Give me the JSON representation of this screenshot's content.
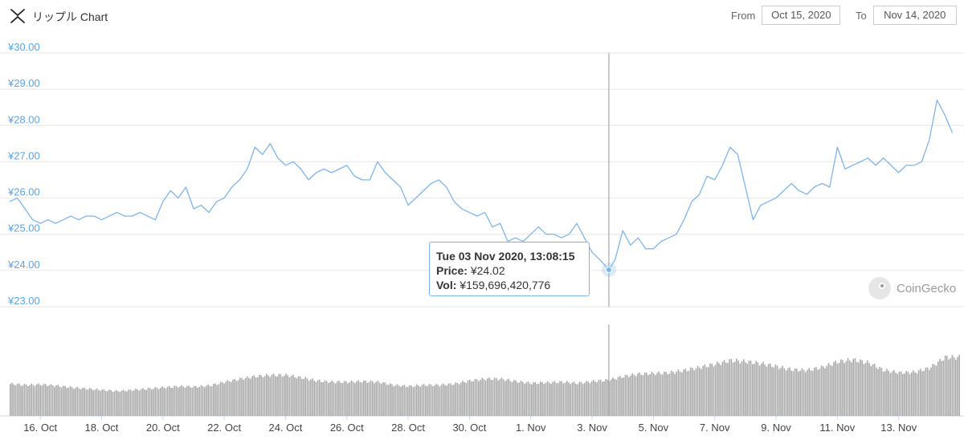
{
  "header": {
    "title": "リップル Chart",
    "from_label": "From",
    "from_value": "Oct 15, 2020",
    "to_label": "To",
    "to_value": "Nov 14, 2020"
  },
  "tooltip": {
    "date": "Tue 03 Nov 2020, 13:08:15",
    "price_label": "Price:",
    "price_value": "¥24.02",
    "vol_label": "Vol:",
    "vol_value": "¥159,696,420,776"
  },
  "watermark": {
    "text": "CoinGecko"
  },
  "colors": {
    "line": "#7cb5ec",
    "volume": "#a8a8a8",
    "grid": "#e6e6e6",
    "axis_label": "#5ba4e5"
  },
  "chart_data": {
    "type": "line",
    "x_start": "2020-10-15",
    "x_end": "2020-11-14",
    "ylim": [
      23,
      30
    ],
    "y_ticks": [
      "¥30.00",
      "¥29.00",
      "¥28.00",
      "¥27.00",
      "¥26.00",
      "¥25.00",
      "¥24.00",
      "¥23.00"
    ],
    "x_ticks": [
      {
        "date": "2020-10-16",
        "label": "16. Oct"
      },
      {
        "date": "2020-10-18",
        "label": "18. Oct"
      },
      {
        "date": "2020-10-20",
        "label": "20. Oct"
      },
      {
        "date": "2020-10-22",
        "label": "22. Oct"
      },
      {
        "date": "2020-10-24",
        "label": "24. Oct"
      },
      {
        "date": "2020-10-26",
        "label": "26. Oct"
      },
      {
        "date": "2020-10-28",
        "label": "28. Oct"
      },
      {
        "date": "2020-10-30",
        "label": "30. Oct"
      },
      {
        "date": "2020-11-01",
        "label": "1. Nov"
      },
      {
        "date": "2020-11-03",
        "label": "3. Nov"
      },
      {
        "date": "2020-11-05",
        "label": "5. Nov"
      },
      {
        "date": "2020-11-07",
        "label": "7. Nov"
      },
      {
        "date": "2020-11-09",
        "label": "9. Nov"
      },
      {
        "date": "2020-11-11",
        "label": "11. Nov"
      },
      {
        "date": "2020-11-13",
        "label": "13. Nov"
      }
    ],
    "grid": true,
    "legend": "none",
    "highlight": {
      "x": "2020-11-03T13:08:15",
      "y": 24.02
    },
    "series": [
      {
        "values": [
          [
            "2020-10-15T00:00",
            25.9
          ],
          [
            "2020-10-15T06:00",
            26.0
          ],
          [
            "2020-10-15T12:00",
            25.7
          ],
          [
            "2020-10-15T18:00",
            25.4
          ],
          [
            "2020-10-16T00:00",
            25.3
          ],
          [
            "2020-10-16T06:00",
            25.4
          ],
          [
            "2020-10-16T12:00",
            25.3
          ],
          [
            "2020-10-16T18:00",
            25.4
          ],
          [
            "2020-10-17T00:00",
            25.5
          ],
          [
            "2020-10-17T06:00",
            25.4
          ],
          [
            "2020-10-17T12:00",
            25.5
          ],
          [
            "2020-10-17T18:00",
            25.5
          ],
          [
            "2020-10-18T00:00",
            25.4
          ],
          [
            "2020-10-18T06:00",
            25.5
          ],
          [
            "2020-10-18T12:00",
            25.6
          ],
          [
            "2020-10-18T18:00",
            25.5
          ],
          [
            "2020-10-19T00:00",
            25.5
          ],
          [
            "2020-10-19T06:00",
            25.6
          ],
          [
            "2020-10-19T12:00",
            25.5
          ],
          [
            "2020-10-19T18:00",
            25.4
          ],
          [
            "2020-10-20T00:00",
            25.9
          ],
          [
            "2020-10-20T06:00",
            26.2
          ],
          [
            "2020-10-20T12:00",
            26.0
          ],
          [
            "2020-10-20T18:00",
            26.3
          ],
          [
            "2020-10-21T00:00",
            25.7
          ],
          [
            "2020-10-21T06:00",
            25.8
          ],
          [
            "2020-10-21T12:00",
            25.6
          ],
          [
            "2020-10-21T18:00",
            25.9
          ],
          [
            "2020-10-22T00:00",
            26.0
          ],
          [
            "2020-10-22T06:00",
            26.3
          ],
          [
            "2020-10-22T12:00",
            26.5
          ],
          [
            "2020-10-22T18:00",
            26.8
          ],
          [
            "2020-10-23T00:00",
            27.4
          ],
          [
            "2020-10-23T06:00",
            27.2
          ],
          [
            "2020-10-23T12:00",
            27.5
          ],
          [
            "2020-10-23T18:00",
            27.1
          ],
          [
            "2020-10-24T00:00",
            26.9
          ],
          [
            "2020-10-24T06:00",
            27.0
          ],
          [
            "2020-10-24T12:00",
            26.8
          ],
          [
            "2020-10-24T18:00",
            26.5
          ],
          [
            "2020-10-25T00:00",
            26.7
          ],
          [
            "2020-10-25T06:00",
            26.8
          ],
          [
            "2020-10-25T12:00",
            26.7
          ],
          [
            "2020-10-25T18:00",
            26.8
          ],
          [
            "2020-10-26T00:00",
            26.9
          ],
          [
            "2020-10-26T06:00",
            26.6
          ],
          [
            "2020-10-26T12:00",
            26.5
          ],
          [
            "2020-10-26T18:00",
            26.5
          ],
          [
            "2020-10-27T00:00",
            27.0
          ],
          [
            "2020-10-27T06:00",
            26.7
          ],
          [
            "2020-10-27T12:00",
            26.5
          ],
          [
            "2020-10-27T18:00",
            26.3
          ],
          [
            "2020-10-28T00:00",
            25.8
          ],
          [
            "2020-10-28T06:00",
            26.0
          ],
          [
            "2020-10-28T12:00",
            26.2
          ],
          [
            "2020-10-28T18:00",
            26.4
          ],
          [
            "2020-10-29T00:00",
            26.5
          ],
          [
            "2020-10-29T06:00",
            26.3
          ],
          [
            "2020-10-29T12:00",
            25.9
          ],
          [
            "2020-10-29T18:00",
            25.7
          ],
          [
            "2020-10-30T00:00",
            25.6
          ],
          [
            "2020-10-30T06:00",
            25.5
          ],
          [
            "2020-10-30T12:00",
            25.6
          ],
          [
            "2020-10-30T18:00",
            25.2
          ],
          [
            "2020-10-31T00:00",
            25.3
          ],
          [
            "2020-10-31T06:00",
            24.8
          ],
          [
            "2020-10-31T12:00",
            24.9
          ],
          [
            "2020-10-31T18:00",
            24.8
          ],
          [
            "2020-11-01T00:00",
            25.0
          ],
          [
            "2020-11-01T06:00",
            25.2
          ],
          [
            "2020-11-01T12:00",
            25.0
          ],
          [
            "2020-11-01T18:00",
            25.0
          ],
          [
            "2020-11-02T00:00",
            24.9
          ],
          [
            "2020-11-02T06:00",
            25.0
          ],
          [
            "2020-11-02T12:00",
            25.3
          ],
          [
            "2020-11-02T18:00",
            24.9
          ],
          [
            "2020-11-03T00:00",
            24.5
          ],
          [
            "2020-11-03T06:00",
            24.3
          ],
          [
            "2020-11-03T13:08",
            24.02
          ],
          [
            "2020-11-03T18:00",
            24.3
          ],
          [
            "2020-11-04T00:00",
            25.1
          ],
          [
            "2020-11-04T06:00",
            24.7
          ],
          [
            "2020-11-04T12:00",
            24.9
          ],
          [
            "2020-11-04T18:00",
            24.6
          ],
          [
            "2020-11-05T00:00",
            24.6
          ],
          [
            "2020-11-05T06:00",
            24.8
          ],
          [
            "2020-11-05T12:00",
            24.9
          ],
          [
            "2020-11-05T18:00",
            25.0
          ],
          [
            "2020-11-06T00:00",
            25.4
          ],
          [
            "2020-11-06T06:00",
            25.9
          ],
          [
            "2020-11-06T12:00",
            26.1
          ],
          [
            "2020-11-06T18:00",
            26.6
          ],
          [
            "2020-11-07T00:00",
            26.5
          ],
          [
            "2020-11-07T06:00",
            26.9
          ],
          [
            "2020-11-07T12:00",
            27.4
          ],
          [
            "2020-11-07T18:00",
            27.2
          ],
          [
            "2020-11-08T00:00",
            26.3
          ],
          [
            "2020-11-08T06:00",
            25.4
          ],
          [
            "2020-11-08T12:00",
            25.8
          ],
          [
            "2020-11-08T18:00",
            25.9
          ],
          [
            "2020-11-09T00:00",
            26.0
          ],
          [
            "2020-11-09T06:00",
            26.2
          ],
          [
            "2020-11-09T12:00",
            26.4
          ],
          [
            "2020-11-09T18:00",
            26.2
          ],
          [
            "2020-11-10T00:00",
            26.1
          ],
          [
            "2020-11-10T06:00",
            26.3
          ],
          [
            "2020-11-10T12:00",
            26.4
          ],
          [
            "2020-11-10T18:00",
            26.3
          ],
          [
            "2020-11-11T00:00",
            27.4
          ],
          [
            "2020-11-11T06:00",
            26.8
          ],
          [
            "2020-11-11T12:00",
            26.9
          ],
          [
            "2020-11-11T18:00",
            27.0
          ],
          [
            "2020-11-12T00:00",
            27.1
          ],
          [
            "2020-11-12T06:00",
            26.9
          ],
          [
            "2020-11-12T12:00",
            27.1
          ],
          [
            "2020-11-12T18:00",
            26.9
          ],
          [
            "2020-11-13T00:00",
            26.7
          ],
          [
            "2020-11-13T06:00",
            26.9
          ],
          [
            "2020-11-13T12:00",
            26.9
          ],
          [
            "2020-11-13T18:00",
            27.0
          ],
          [
            "2020-11-14T00:00",
            27.6
          ],
          [
            "2020-11-14T06:00",
            28.7
          ],
          [
            "2020-11-14T12:00",
            28.3
          ],
          [
            "2020-11-14T18:00",
            27.8
          ]
        ]
      }
    ],
    "volume": [
      [
        "2020-10-15T00:00",
        0.52
      ],
      [
        "2020-10-15T12:00",
        0.5
      ],
      [
        "2020-10-16T00:00",
        0.51
      ],
      [
        "2020-10-16T12:00",
        0.49
      ],
      [
        "2020-10-17T00:00",
        0.46
      ],
      [
        "2020-10-17T12:00",
        0.44
      ],
      [
        "2020-10-18T00:00",
        0.42
      ],
      [
        "2020-10-18T12:00",
        0.4
      ],
      [
        "2020-10-19T00:00",
        0.42
      ],
      [
        "2020-10-19T12:00",
        0.44
      ],
      [
        "2020-10-20T00:00",
        0.46
      ],
      [
        "2020-10-20T12:00",
        0.48
      ],
      [
        "2020-10-21T00:00",
        0.47
      ],
      [
        "2020-10-21T12:00",
        0.49
      ],
      [
        "2020-10-22T00:00",
        0.55
      ],
      [
        "2020-10-22T12:00",
        0.6
      ],
      [
        "2020-10-23T00:00",
        0.64
      ],
      [
        "2020-10-23T12:00",
        0.66
      ],
      [
        "2020-10-24T00:00",
        0.66
      ],
      [
        "2020-10-24T12:00",
        0.62
      ],
      [
        "2020-10-25T00:00",
        0.57
      ],
      [
        "2020-10-25T12:00",
        0.55
      ],
      [
        "2020-10-26T00:00",
        0.55
      ],
      [
        "2020-10-26T12:00",
        0.56
      ],
      [
        "2020-10-27T00:00",
        0.55
      ],
      [
        "2020-10-27T12:00",
        0.5
      ],
      [
        "2020-10-28T00:00",
        0.48
      ],
      [
        "2020-10-28T12:00",
        0.5
      ],
      [
        "2020-10-29T00:00",
        0.5
      ],
      [
        "2020-10-29T12:00",
        0.52
      ],
      [
        "2020-10-30T00:00",
        0.57
      ],
      [
        "2020-10-30T12:00",
        0.6
      ],
      [
        "2020-10-31T00:00",
        0.6
      ],
      [
        "2020-10-31T12:00",
        0.56
      ],
      [
        "2020-11-01T00:00",
        0.53
      ],
      [
        "2020-11-01T12:00",
        0.54
      ],
      [
        "2020-11-02T00:00",
        0.55
      ],
      [
        "2020-11-02T12:00",
        0.53
      ],
      [
        "2020-11-03T00:00",
        0.56
      ],
      [
        "2020-11-03T12:00",
        0.58
      ],
      [
        "2020-11-04T00:00",
        0.64
      ],
      [
        "2020-11-04T12:00",
        0.68
      ],
      [
        "2020-11-05T00:00",
        0.69
      ],
      [
        "2020-11-05T12:00",
        0.7
      ],
      [
        "2020-11-06T00:00",
        0.74
      ],
      [
        "2020-11-06T12:00",
        0.79
      ],
      [
        "2020-11-07T00:00",
        0.84
      ],
      [
        "2020-11-07T12:00",
        0.9
      ],
      [
        "2020-11-08T00:00",
        0.88
      ],
      [
        "2020-11-08T12:00",
        0.85
      ],
      [
        "2020-11-09T00:00",
        0.8
      ],
      [
        "2020-11-09T12:00",
        0.75
      ],
      [
        "2020-11-10T00:00",
        0.74
      ],
      [
        "2020-11-10T12:00",
        0.79
      ],
      [
        "2020-11-11T00:00",
        0.88
      ],
      [
        "2020-11-11T12:00",
        0.91
      ],
      [
        "2020-11-12T00:00",
        0.86
      ],
      [
        "2020-11-12T12:00",
        0.74
      ],
      [
        "2020-11-13T00:00",
        0.7
      ],
      [
        "2020-11-13T12:00",
        0.71
      ],
      [
        "2020-11-14T00:00",
        0.78
      ],
      [
        "2020-11-14T12:00",
        0.95
      ]
    ]
  }
}
